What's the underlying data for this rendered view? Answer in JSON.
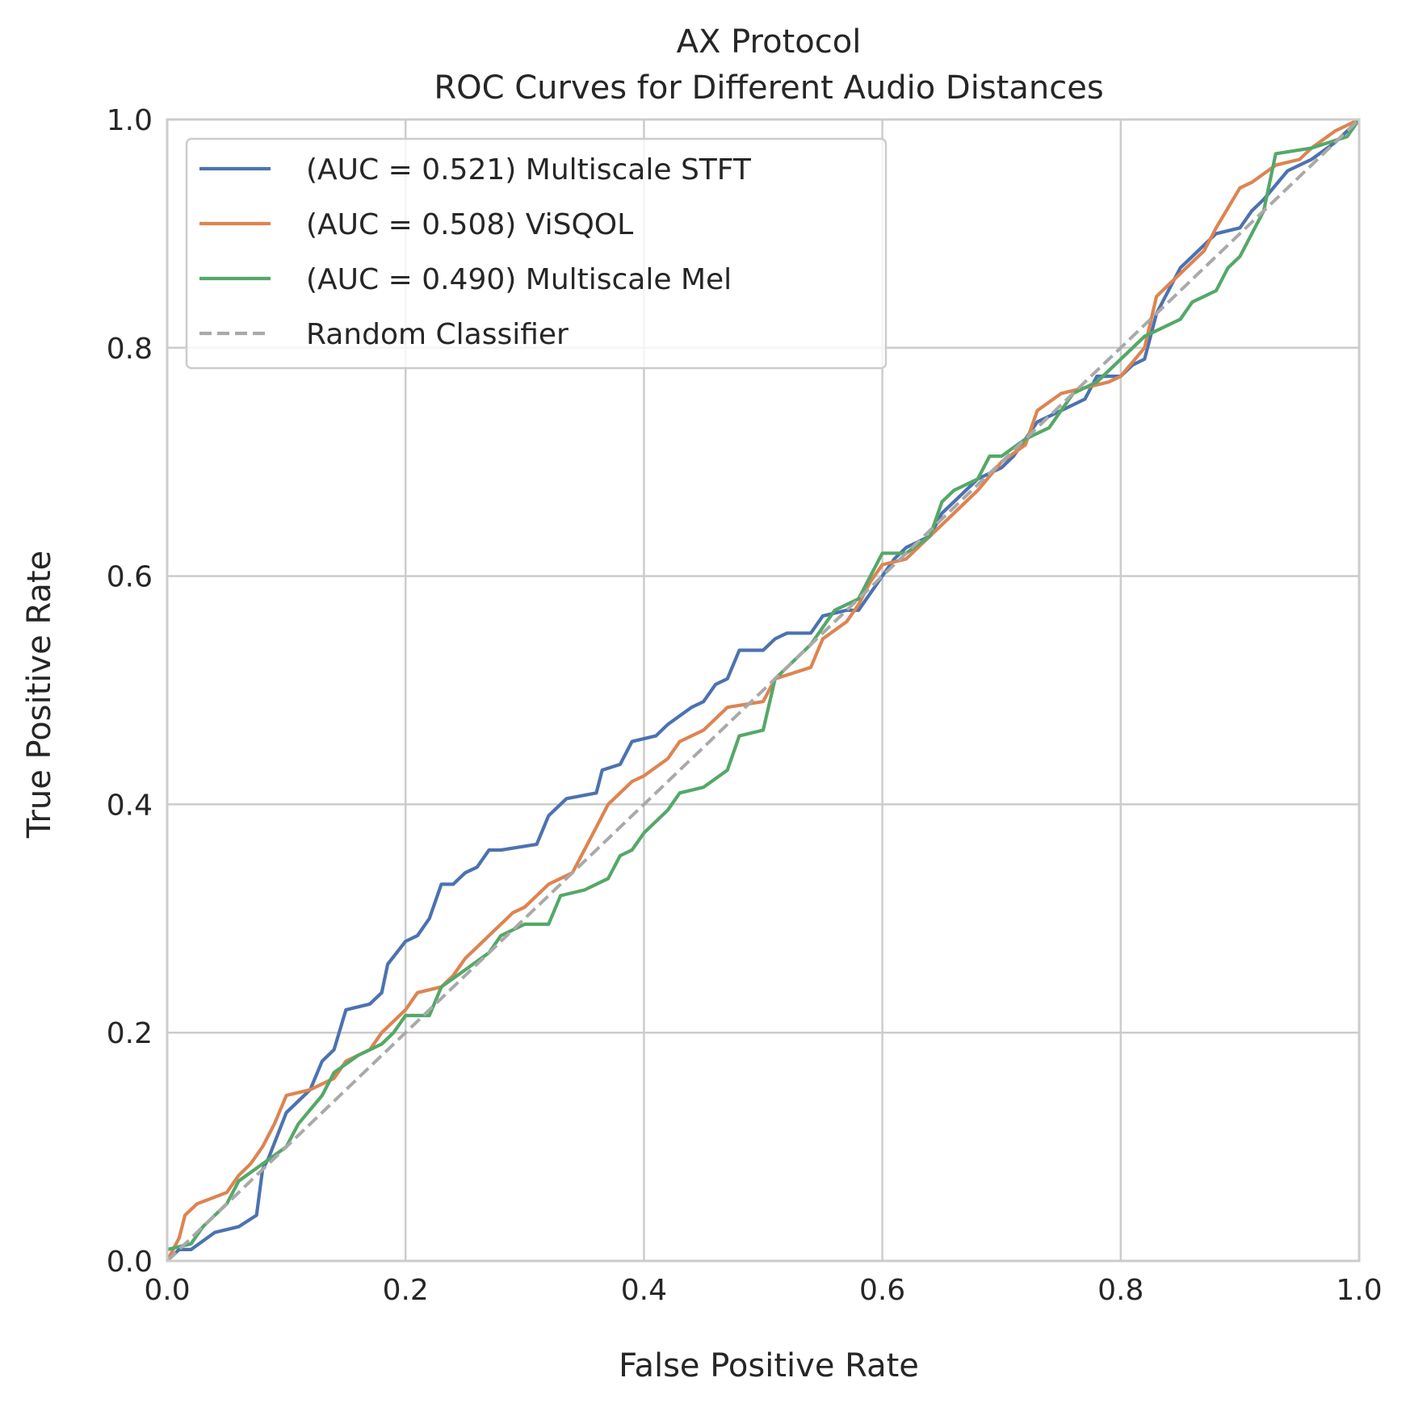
{
  "chart_data": {
    "type": "line",
    "title": "AX Protocol",
    "subtitle": "ROC Curves for Different Audio Distances",
    "xlabel": "False Positive Rate",
    "ylabel": "True Positive Rate",
    "xlim": [
      0.0,
      1.0
    ],
    "ylim": [
      0.0,
      1.0
    ],
    "xticks": [
      "0.0",
      "0.2",
      "0.4",
      "0.6",
      "0.8",
      "1.0"
    ],
    "yticks": [
      "0.0",
      "0.2",
      "0.4",
      "0.6",
      "0.8",
      "1.0"
    ],
    "grid": true,
    "legend_position": "top-left",
    "series": [
      {
        "name": "(AUC = 0.521) Multiscale STFT",
        "color": "#4c72b0",
        "style": "solid",
        "x": [
          0.0,
          0.01,
          0.02,
          0.04,
          0.06,
          0.075,
          0.08,
          0.085,
          0.1,
          0.12,
          0.13,
          0.14,
          0.15,
          0.17,
          0.18,
          0.185,
          0.2,
          0.21,
          0.22,
          0.23,
          0.24,
          0.25,
          0.26,
          0.27,
          0.28,
          0.31,
          0.32,
          0.335,
          0.36,
          0.365,
          0.38,
          0.39,
          0.41,
          0.42,
          0.44,
          0.45,
          0.46,
          0.47,
          0.48,
          0.5,
          0.51,
          0.52,
          0.54,
          0.55,
          0.57,
          0.58,
          0.6,
          0.61,
          0.62,
          0.64,
          0.65,
          0.66,
          0.68,
          0.69,
          0.7,
          0.71,
          0.72,
          0.73,
          0.75,
          0.77,
          0.78,
          0.8,
          0.81,
          0.82,
          0.83,
          0.84,
          0.85,
          0.86,
          0.87,
          0.88,
          0.9,
          0.91,
          0.92,
          0.94,
          0.96,
          0.98,
          1.0
        ],
        "y": [
          0.0,
          0.01,
          0.01,
          0.025,
          0.03,
          0.04,
          0.08,
          0.09,
          0.13,
          0.15,
          0.175,
          0.185,
          0.22,
          0.225,
          0.235,
          0.26,
          0.28,
          0.285,
          0.3,
          0.33,
          0.33,
          0.34,
          0.345,
          0.36,
          0.36,
          0.365,
          0.39,
          0.405,
          0.41,
          0.43,
          0.435,
          0.455,
          0.46,
          0.47,
          0.485,
          0.49,
          0.505,
          0.51,
          0.535,
          0.535,
          0.545,
          0.55,
          0.55,
          0.565,
          0.57,
          0.57,
          0.6,
          0.615,
          0.625,
          0.635,
          0.655,
          0.665,
          0.685,
          0.69,
          0.695,
          0.705,
          0.72,
          0.735,
          0.745,
          0.755,
          0.775,
          0.775,
          0.785,
          0.79,
          0.83,
          0.85,
          0.87,
          0.88,
          0.89,
          0.9,
          0.905,
          0.92,
          0.93,
          0.955,
          0.965,
          0.98,
          1.0
        ]
      },
      {
        "name": "(AUC = 0.508) ViSQOL",
        "color": "#dd8452",
        "style": "solid",
        "x": [
          0.0,
          0.01,
          0.015,
          0.025,
          0.05,
          0.06,
          0.07,
          0.08,
          0.09,
          0.1,
          0.12,
          0.14,
          0.15,
          0.17,
          0.18,
          0.2,
          0.21,
          0.23,
          0.24,
          0.25,
          0.26,
          0.27,
          0.28,
          0.29,
          0.3,
          0.31,
          0.32,
          0.34,
          0.35,
          0.36,
          0.37,
          0.39,
          0.4,
          0.42,
          0.43,
          0.45,
          0.46,
          0.47,
          0.5,
          0.51,
          0.54,
          0.55,
          0.57,
          0.58,
          0.59,
          0.6,
          0.62,
          0.64,
          0.66,
          0.67,
          0.68,
          0.7,
          0.72,
          0.73,
          0.75,
          0.77,
          0.79,
          0.8,
          0.82,
          0.83,
          0.84,
          0.85,
          0.87,
          0.88,
          0.9,
          0.91,
          0.93,
          0.95,
          0.96,
          0.98,
          1.0
        ],
        "y": [
          0.0,
          0.02,
          0.04,
          0.05,
          0.06,
          0.075,
          0.085,
          0.1,
          0.12,
          0.145,
          0.15,
          0.16,
          0.175,
          0.185,
          0.2,
          0.22,
          0.235,
          0.24,
          0.25,
          0.265,
          0.275,
          0.285,
          0.295,
          0.305,
          0.31,
          0.32,
          0.33,
          0.34,
          0.36,
          0.38,
          0.4,
          0.42,
          0.425,
          0.44,
          0.455,
          0.465,
          0.475,
          0.485,
          0.49,
          0.51,
          0.52,
          0.545,
          0.56,
          0.575,
          0.595,
          0.61,
          0.615,
          0.635,
          0.655,
          0.665,
          0.675,
          0.7,
          0.715,
          0.745,
          0.76,
          0.765,
          0.77,
          0.775,
          0.8,
          0.845,
          0.855,
          0.865,
          0.885,
          0.905,
          0.94,
          0.945,
          0.96,
          0.965,
          0.975,
          0.99,
          1.0
        ]
      },
      {
        "name": "(AUC = 0.490) Multiscale Mel",
        "color": "#55a868",
        "style": "solid",
        "x": [
          0.0,
          0.02,
          0.03,
          0.05,
          0.06,
          0.08,
          0.1,
          0.11,
          0.13,
          0.14,
          0.16,
          0.18,
          0.19,
          0.2,
          0.22,
          0.23,
          0.25,
          0.27,
          0.28,
          0.3,
          0.32,
          0.33,
          0.35,
          0.37,
          0.38,
          0.39,
          0.4,
          0.42,
          0.43,
          0.45,
          0.47,
          0.48,
          0.5,
          0.51,
          0.52,
          0.54,
          0.56,
          0.58,
          0.59,
          0.6,
          0.62,
          0.64,
          0.65,
          0.66,
          0.68,
          0.69,
          0.7,
          0.72,
          0.74,
          0.75,
          0.76,
          0.78,
          0.81,
          0.82,
          0.85,
          0.86,
          0.88,
          0.89,
          0.9,
          0.92,
          0.93,
          0.96,
          0.99,
          1.0
        ],
        "y": [
          0.01,
          0.015,
          0.03,
          0.05,
          0.07,
          0.085,
          0.1,
          0.12,
          0.145,
          0.165,
          0.18,
          0.19,
          0.2,
          0.215,
          0.215,
          0.24,
          0.255,
          0.27,
          0.285,
          0.295,
          0.295,
          0.32,
          0.325,
          0.335,
          0.355,
          0.36,
          0.375,
          0.395,
          0.41,
          0.415,
          0.43,
          0.46,
          0.465,
          0.51,
          0.52,
          0.54,
          0.57,
          0.58,
          0.6,
          0.62,
          0.62,
          0.635,
          0.665,
          0.675,
          0.685,
          0.705,
          0.705,
          0.72,
          0.73,
          0.745,
          0.76,
          0.77,
          0.8,
          0.81,
          0.825,
          0.84,
          0.85,
          0.87,
          0.88,
          0.92,
          0.97,
          0.975,
          0.985,
          1.0
        ]
      },
      {
        "name": "Random Classifier",
        "color": "#a9a9a9",
        "style": "dashed",
        "x": [
          0.0,
          1.0
        ],
        "y": [
          0.0,
          1.0
        ]
      }
    ]
  }
}
